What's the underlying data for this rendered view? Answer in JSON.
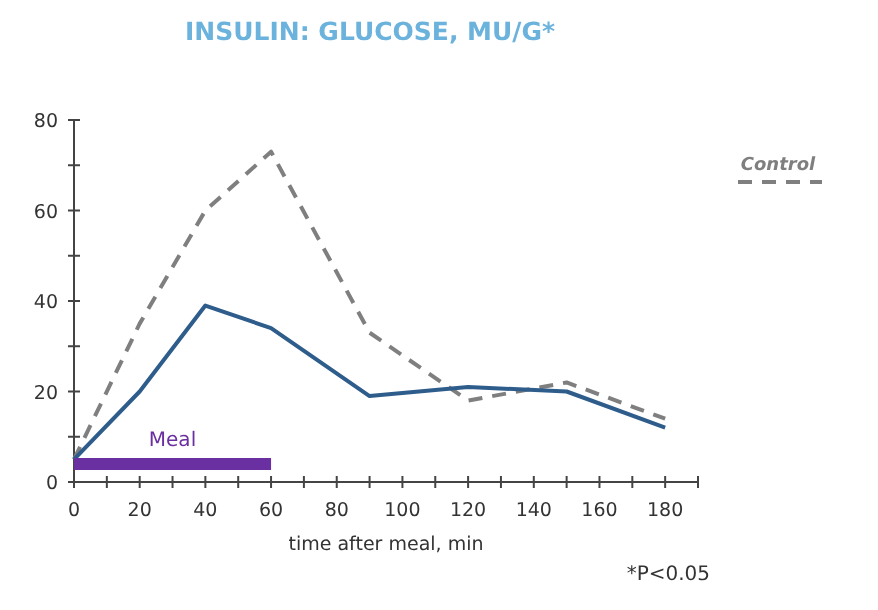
{
  "chart_data": {
    "type": "line",
    "title": "INSULIN: GLUCOSE, MU/G*",
    "xlabel": "time after meal, min",
    "x": [
      0,
      20,
      40,
      60,
      90,
      120,
      150,
      180
    ],
    "series": [
      {
        "name": "Control",
        "color": "#7f7f7f",
        "line_style": "dashed",
        "values": [
          5,
          35,
          60,
          73,
          33,
          18,
          22,
          14
        ]
      },
      {
        "color": "#2e5d8c",
        "line_style": "solid",
        "values": [
          5,
          20,
          39,
          34,
          19,
          21,
          20,
          12
        ]
      },
      {
        "name": "Meal",
        "color": "#6a2fa0",
        "line_style": "solid",
        "x": [
          0,
          60
        ],
        "values": [
          4,
          4
        ]
      }
    ],
    "xlim": [
      0,
      190
    ],
    "xticks": [
      0,
      {
        "value": 10,
        "label": null
      },
      20,
      {
        "value": 30,
        "label": null
      },
      40,
      {
        "value": 50,
        "label": null
      },
      60,
      {
        "value": 70,
        "label": null
      },
      80,
      {
        "value": 90,
        "label": null
      },
      100,
      {
        "value": 110,
        "label": null
      },
      120,
      {
        "value": 130,
        "label": null
      },
      140,
      {
        "value": 150,
        "label": null
      },
      160,
      {
        "value": 170,
        "label": null
      },
      180,
      {
        "value": 190,
        "label": null
      }
    ],
    "ylim": [
      0,
      80
    ],
    "yticks": [
      0,
      {
        "value": 10,
        "label": null
      },
      20,
      {
        "value": 30,
        "label": null
      },
      40,
      {
        "value": 50,
        "label": null
      },
      60,
      {
        "value": 70,
        "label": null
      },
      80
    ],
    "annotations": [
      "*P<0.05"
    ],
    "legend": "right",
    "grid": false,
    "marker": "none"
  }
}
